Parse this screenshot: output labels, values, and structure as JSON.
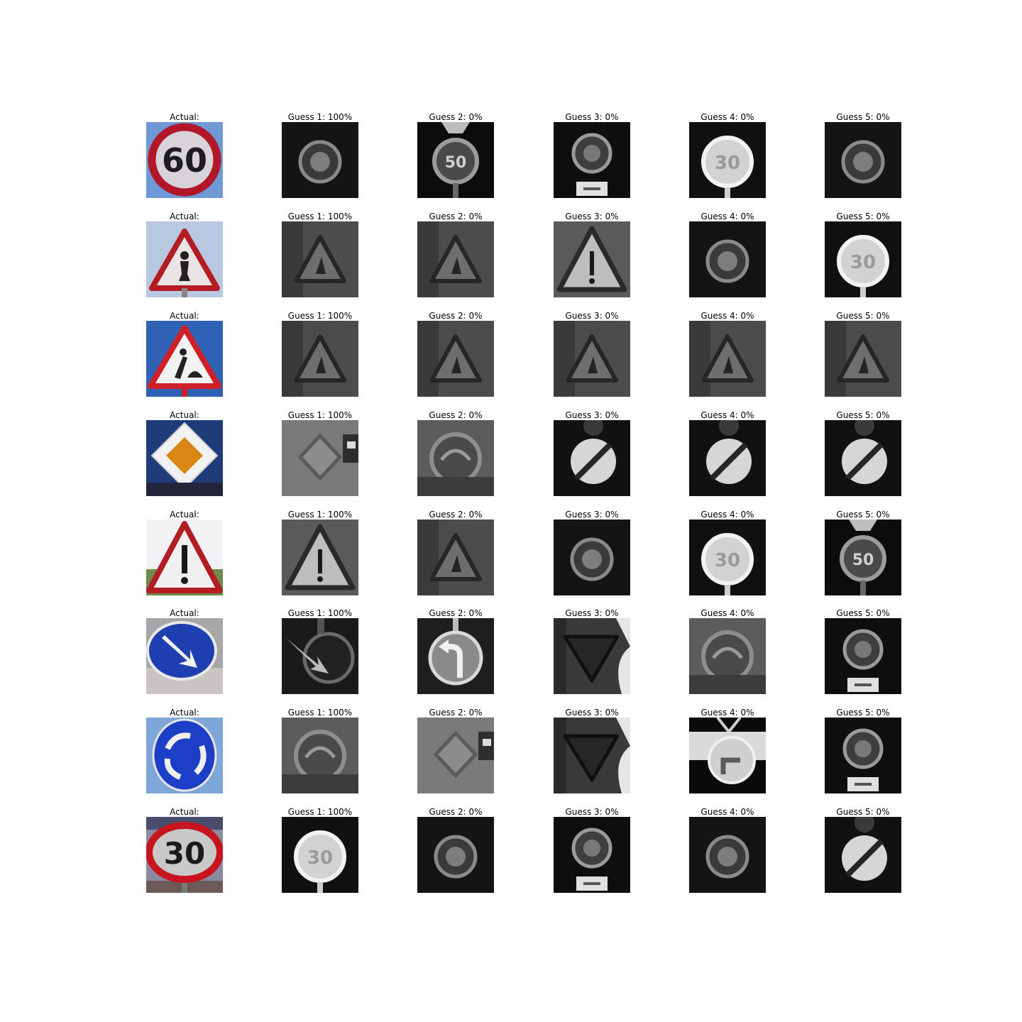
{
  "figure": {
    "rows": [
      {
        "actual_label": "Actual:",
        "actual_icon": "speed-limit-60-sign",
        "guesses": [
          {
            "label": "Guess 1: 100%",
            "icon": "speed-limit-sign-gray"
          },
          {
            "label": "Guess 2: 0%",
            "icon": "speed-limit-50-sign-gray"
          },
          {
            "label": "Guess 3: 0%",
            "icon": "speed-limit-sign-with-plate-gray"
          },
          {
            "label": "Guess 4: 0%",
            "icon": "speed-limit-30-sign-gray"
          },
          {
            "label": "Guess 5: 0%",
            "icon": "speed-limit-sign-gray"
          }
        ]
      },
      {
        "actual_label": "Actual:",
        "actual_icon": "pedestrian-warning-sign",
        "guesses": [
          {
            "label": "Guess 1: 100%",
            "icon": "warning-triangle-gray"
          },
          {
            "label": "Guess 2: 0%",
            "icon": "warning-triangle-gray"
          },
          {
            "label": "Guess 3: 0%",
            "icon": "general-caution-sign-gray"
          },
          {
            "label": "Guess 4: 0%",
            "icon": "speed-limit-sign-gray"
          },
          {
            "label": "Guess 5: 0%",
            "icon": "speed-limit-30-sign-gray"
          }
        ]
      },
      {
        "actual_label": "Actual:",
        "actual_icon": "road-work-sign",
        "guesses": [
          {
            "label": "Guess 1: 100%",
            "icon": "warning-triangle-gray"
          },
          {
            "label": "Guess 2: 0%",
            "icon": "warning-triangle-gray"
          },
          {
            "label": "Guess 3: 0%",
            "icon": "warning-triangle-gray"
          },
          {
            "label": "Guess 4: 0%",
            "icon": "warning-triangle-gray"
          },
          {
            "label": "Guess 5: 0%",
            "icon": "warning-triangle-gray"
          }
        ]
      },
      {
        "actual_label": "Actual:",
        "actual_icon": "priority-road-sign",
        "guesses": [
          {
            "label": "Guess 1: 100%",
            "icon": "priority-road-sign-gray"
          },
          {
            "label": "Guess 2: 0%",
            "icon": "round-sign-gray"
          },
          {
            "label": "Guess 3: 0%",
            "icon": "end-of-restriction-sign-gray"
          },
          {
            "label": "Guess 4: 0%",
            "icon": "end-of-restriction-sign-gray"
          },
          {
            "label": "Guess 5: 0%",
            "icon": "end-of-restriction-sign-gray"
          }
        ]
      },
      {
        "actual_label": "Actual:",
        "actual_icon": "general-caution-sign",
        "guesses": [
          {
            "label": "Guess 1: 100%",
            "icon": "general-caution-sign-gray"
          },
          {
            "label": "Guess 2: 0%",
            "icon": "warning-triangle-gray"
          },
          {
            "label": "Guess 3: 0%",
            "icon": "speed-limit-sign-gray"
          },
          {
            "label": "Guess 4: 0%",
            "icon": "speed-limit-30-sign-gray"
          },
          {
            "label": "Guess 5: 0%",
            "icon": "speed-limit-50-sign-gray"
          }
        ]
      },
      {
        "actual_label": "Actual:",
        "actual_icon": "keep-right-sign",
        "guesses": [
          {
            "label": "Guess 1: 100%",
            "icon": "keep-right-sign-gray"
          },
          {
            "label": "Guess 2: 0%",
            "icon": "turn-left-sign-gray"
          },
          {
            "label": "Guess 3: 0%",
            "icon": "yield-sign-gray"
          },
          {
            "label": "Guess 4: 0%",
            "icon": "round-sign-gray"
          },
          {
            "label": "Guess 5: 0%",
            "icon": "speed-limit-sign-with-plate-gray"
          }
        ]
      },
      {
        "actual_label": "Actual:",
        "actual_icon": "roundabout-sign",
        "guesses": [
          {
            "label": "Guess 1: 100%",
            "icon": "round-sign-gray"
          },
          {
            "label": "Guess 2: 0%",
            "icon": "priority-road-sign-gray"
          },
          {
            "label": "Guess 3: 0%",
            "icon": "yield-sign-gray"
          },
          {
            "label": "Guess 4: 0%",
            "icon": "turn-sign-gray"
          },
          {
            "label": "Guess 5: 0%",
            "icon": "speed-limit-sign-with-plate-gray"
          }
        ]
      },
      {
        "actual_label": "Actual:",
        "actual_icon": "speed-limit-30-sign",
        "guesses": [
          {
            "label": "Guess 1: 100%",
            "icon": "speed-limit-30-sign-gray"
          },
          {
            "label": "Guess 2: 0%",
            "icon": "speed-limit-sign-gray"
          },
          {
            "label": "Guess 3: 0%",
            "icon": "speed-limit-sign-with-plate-gray"
          },
          {
            "label": "Guess 4: 0%",
            "icon": "speed-limit-sign-gray"
          },
          {
            "label": "Guess 5: 0%",
            "icon": "end-of-restriction-sign-gray"
          }
        ]
      }
    ]
  }
}
